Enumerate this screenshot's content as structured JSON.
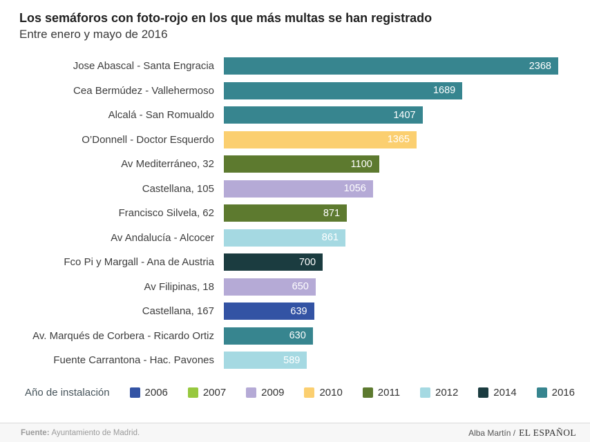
{
  "header": {
    "title": "Los semáforos con foto-rojo en los que más multas se han registrado",
    "subtitle": "Entre enero y mayo de 2016"
  },
  "chart_data": {
    "type": "bar",
    "orientation": "horizontal",
    "title": "Los semáforos con foto-rojo en los que más multas se han registrado",
    "subtitle": "Entre enero y mayo de 2016",
    "xlim": [
      0,
      2368
    ],
    "grid": false,
    "value_labels": "inside-end, white",
    "categories": [
      "Jose Abascal - Santa Engracia",
      "Cea Bermúdez - Vallehermoso",
      "Alcalá - San Romualdo",
      "O’Donnell - Doctor Esquerdo",
      "Av Mediterráneo, 32",
      "Castellana, 105",
      "Francisco Silvela, 62",
      "Av Andalucía - Alcocer",
      "Fco Pi y Margall - Ana de Austria",
      "Av Filipinas, 18",
      "Castellana, 167",
      "Av. Marqués de Corbera - Ricardo Ortiz",
      "Fuente Carrantona - Hac. Pavones"
    ],
    "values": [
      2368,
      1689,
      1407,
      1365,
      1100,
      1056,
      871,
      861,
      700,
      650,
      639,
      630,
      589
    ],
    "bar_years": [
      "2016",
      "2016",
      "2016",
      "2010",
      "2011",
      "2009",
      "2011",
      "2012",
      "2014",
      "2009",
      "2006",
      "2016",
      "2012"
    ],
    "legend_title": "Año de instalación",
    "legend_position": "bottom",
    "legend": [
      {
        "label": "2006",
        "color": "#3353a4"
      },
      {
        "label": "2007",
        "color": "#97c83f"
      },
      {
        "label": "2009",
        "color": "#b5aad6"
      },
      {
        "label": "2010",
        "color": "#fbcf70"
      },
      {
        "label": "2011",
        "color": "#5d7a2f"
      },
      {
        "label": "2012",
        "color": "#a5d9e2"
      },
      {
        "label": "2014",
        "color": "#1b3c40"
      },
      {
        "label": "2016",
        "color": "#37858f"
      }
    ]
  },
  "footer": {
    "source_label": "Fuente:",
    "source": "Ayuntamiento de Madrid.",
    "credit_author": "Alba Martín /",
    "credit_brand": "EL ESPAÑOL"
  }
}
